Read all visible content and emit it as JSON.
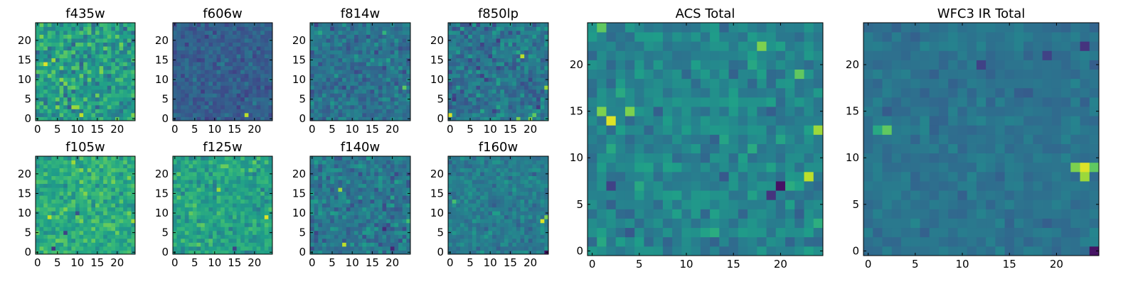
{
  "figure": {
    "layout": "grid: 2 rows x 4 small panels on the left, 2 large panels on the right"
  },
  "colormap": {
    "name": "viridis",
    "stops": [
      "#440154",
      "#482878",
      "#3e4989",
      "#31688e",
      "#26828e",
      "#1f9e89",
      "#35b779",
      "#6ece58",
      "#b5de2b",
      "#fde725"
    ]
  },
  "chart_data": [
    {
      "type": "heatmap",
      "title": "f435w",
      "grid_size": 25,
      "xlim": [
        0,
        24
      ],
      "ylim": [
        0,
        24
      ],
      "xticks": [
        0,
        5,
        10,
        15,
        20
      ],
      "yticks": [
        0,
        5,
        10,
        15,
        20
      ],
      "value_range": [
        0.25,
        0.95
      ],
      "mean_level": 0.55,
      "noise": 0.2,
      "seed": 435,
      "bright_spots": [
        [
          2,
          14,
          0.95
        ],
        [
          11,
          1,
          0.9
        ],
        [
          9,
          3,
          0.85
        ],
        [
          1,
          21,
          0.8
        ],
        [
          4,
          15,
          0.85
        ]
      ]
    },
    {
      "type": "heatmap",
      "title": "f606w",
      "grid_size": 25,
      "xlim": [
        0,
        24
      ],
      "ylim": [
        0,
        24
      ],
      "xticks": [
        0,
        5,
        10,
        15,
        20
      ],
      "yticks": [
        0,
        5,
        10,
        15,
        20
      ],
      "value_range": [
        0.1,
        0.9
      ],
      "mean_level": 0.3,
      "noise": 0.09,
      "seed": 606,
      "bright_spots": [
        [
          18,
          1,
          0.9
        ]
      ]
    },
    {
      "type": "heatmap",
      "title": "f814w",
      "grid_size": 25,
      "xlim": [
        0,
        24
      ],
      "ylim": [
        0,
        24
      ],
      "xticks": [
        0,
        5,
        10,
        15,
        20
      ],
      "yticks": [
        0,
        5,
        10,
        15,
        20
      ],
      "value_range": [
        0.1,
        0.8
      ],
      "mean_level": 0.38,
      "noise": 0.13,
      "seed": 814,
      "bright_spots": [
        [
          23,
          8,
          0.75
        ],
        [
          18,
          22,
          0.65
        ],
        [
          2,
          22,
          0.6
        ]
      ]
    },
    {
      "type": "heatmap",
      "title": "f850lp",
      "grid_size": 25,
      "xlim": [
        0,
        24
      ],
      "ylim": [
        0,
        24
      ],
      "xticks": [
        0,
        5,
        10,
        15,
        20
      ],
      "yticks": [
        0,
        5,
        10,
        15,
        20
      ],
      "value_range": [
        0.1,
        0.95
      ],
      "mean_level": 0.38,
      "noise": 0.15,
      "seed": 850,
      "bright_spots": [
        [
          0,
          1,
          0.95
        ],
        [
          18,
          16,
          0.9
        ],
        [
          24,
          8,
          0.85
        ],
        [
          20,
          0,
          0.8
        ],
        [
          17,
          0,
          0.8
        ],
        [
          21,
          1,
          0.75
        ]
      ]
    },
    {
      "type": "heatmap",
      "title": "f105w",
      "grid_size": 25,
      "xlim": [
        0,
        24
      ],
      "ylim": [
        0,
        24
      ],
      "xticks": [
        0,
        5,
        10,
        15,
        20
      ],
      "yticks": [
        0,
        5,
        10,
        15,
        20
      ],
      "value_range": [
        0.1,
        0.95
      ],
      "mean_level": 0.62,
      "noise": 0.14,
      "seed": 105,
      "bright_spots": [
        [
          3,
          9,
          0.9
        ],
        [
          9,
          23,
          0.85
        ],
        [
          24,
          8,
          0.85
        ],
        [
          23,
          19,
          0.8
        ],
        [
          16,
          22,
          0.75
        ]
      ],
      "dark_spots": [
        [
          4,
          1,
          0.15
        ],
        [
          7,
          5,
          0.2
        ],
        [
          10,
          10,
          0.25
        ]
      ]
    },
    {
      "type": "heatmap",
      "title": "f125w",
      "grid_size": 25,
      "xlim": [
        0,
        24
      ],
      "ylim": [
        0,
        24
      ],
      "xticks": [
        0,
        5,
        10,
        15,
        20
      ],
      "yticks": [
        0,
        5,
        10,
        15,
        20
      ],
      "value_range": [
        0.1,
        0.95
      ],
      "mean_level": 0.58,
      "noise": 0.14,
      "seed": 125,
      "bright_spots": [
        [
          23,
          9,
          0.95
        ],
        [
          11,
          16,
          0.85
        ],
        [
          4,
          10,
          0.75
        ],
        [
          6,
          2,
          0.75
        ]
      ],
      "dark_spots": [
        [
          15,
          1,
          0.2
        ]
      ]
    },
    {
      "type": "heatmap",
      "title": "f140w",
      "grid_size": 25,
      "xlim": [
        0,
        24
      ],
      "ylim": [
        0,
        24
      ],
      "xticks": [
        0,
        5,
        10,
        15,
        20
      ],
      "yticks": [
        0,
        5,
        10,
        15,
        20
      ],
      "value_range": [
        0.05,
        0.95
      ],
      "mean_level": 0.4,
      "noise": 0.14,
      "seed": 140,
      "bright_spots": [
        [
          8,
          2,
          0.9
        ],
        [
          7,
          16,
          0.85
        ],
        [
          24,
          8,
          0.7
        ]
      ],
      "dark_spots": [
        [
          20,
          1,
          0.1
        ],
        [
          18,
          6,
          0.12
        ]
      ]
    },
    {
      "type": "heatmap",
      "title": "f160w",
      "grid_size": 25,
      "xlim": [
        0,
        24
      ],
      "ylim": [
        0,
        24
      ],
      "xticks": [
        0,
        5,
        10,
        15,
        20
      ],
      "yticks": [
        0,
        5,
        10,
        15,
        20
      ],
      "value_range": [
        0.05,
        0.95
      ],
      "mean_level": 0.42,
      "noise": 0.1,
      "seed": 160,
      "bright_spots": [
        [
          23,
          8,
          0.95
        ],
        [
          24,
          9,
          0.8
        ],
        [
          1,
          13,
          0.7
        ]
      ],
      "dark_spots": [
        [
          24,
          0,
          0.05
        ]
      ]
    },
    {
      "type": "heatmap",
      "title": "ACS Total",
      "grid_size": 25,
      "xlim": [
        0,
        24
      ],
      "ylim": [
        0,
        24
      ],
      "xticks": [
        0,
        5,
        10,
        15,
        20
      ],
      "yticks": [
        0,
        5,
        10,
        15,
        20
      ],
      "value_range": [
        0.05,
        0.95
      ],
      "mean_level": 0.45,
      "noise": 0.12,
      "seed": 1000,
      "bright_spots": [
        [
          2,
          14,
          0.95
        ],
        [
          1,
          15,
          0.8
        ],
        [
          4,
          15,
          0.8
        ],
        [
          23,
          8,
          0.9
        ],
        [
          24,
          13,
          0.85
        ],
        [
          18,
          22,
          0.8
        ],
        [
          1,
          24,
          0.75
        ],
        [
          22,
          19,
          0.75
        ]
      ],
      "dark_spots": [
        [
          20,
          7,
          0.05
        ],
        [
          19,
          6,
          0.15
        ],
        [
          2,
          7,
          0.2
        ]
      ]
    },
    {
      "type": "heatmap",
      "title": "WFC3 IR Total",
      "grid_size": 25,
      "xlim": [
        0,
        24
      ],
      "ylim": [
        0,
        24
      ],
      "xticks": [
        0,
        5,
        10,
        15,
        20
      ],
      "yticks": [
        0,
        5,
        10,
        15,
        20
      ],
      "value_range": [
        0.05,
        0.95
      ],
      "mean_level": 0.38,
      "noise": 0.06,
      "seed": 2000,
      "bright_spots": [
        [
          23,
          9,
          0.95
        ],
        [
          22,
          9,
          0.8
        ],
        [
          24,
          9,
          0.75
        ],
        [
          23,
          8,
          0.85
        ],
        [
          2,
          13,
          0.75
        ],
        [
          1,
          13,
          0.6
        ]
      ],
      "dark_spots": [
        [
          24,
          0,
          0.05
        ],
        [
          23,
          22,
          0.15
        ],
        [
          19,
          21,
          0.2
        ],
        [
          12,
          20,
          0.2
        ]
      ]
    }
  ]
}
